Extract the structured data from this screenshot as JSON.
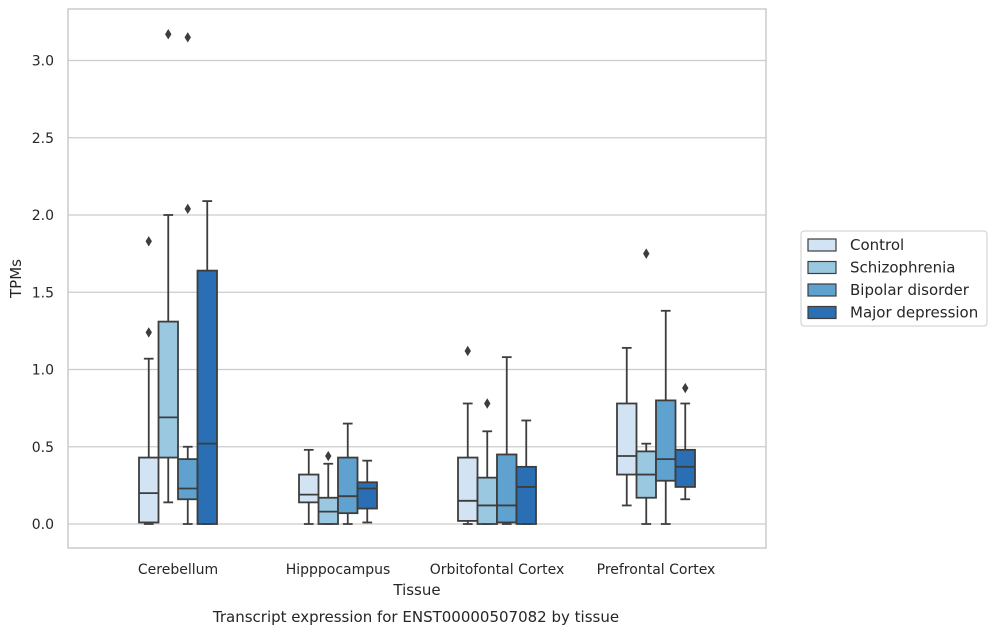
{
  "chart_data": {
    "type": "box",
    "title": "",
    "caption": "Transcript expression for ENST00000507082 by tissue",
    "xlabel": "Tissue",
    "ylabel": "TPMs",
    "ylim": [
      -0.15,
      3.35
    ],
    "yticks": [
      0.0,
      0.5,
      1.0,
      1.5,
      2.0,
      2.5,
      3.0
    ],
    "ytick_labels": [
      "0.0",
      "0.5",
      "1.0",
      "1.5",
      "2.0",
      "2.5",
      "3.0"
    ],
    "grid": "horizontal",
    "legend_position": "right",
    "categories": [
      "Cerebellum",
      "Hipppocampus",
      "Orbitofontal Cortex",
      "Prefrontal Cortex"
    ],
    "series": [
      {
        "name": "Control",
        "color": "#d2e3f3",
        "boxes": [
          {
            "whislo": 0.0,
            "q1": 0.01,
            "med": 0.2,
            "q3": 0.43,
            "whishi": 1.07,
            "fliers": [
              1.24,
              1.83
            ]
          },
          {
            "whislo": 0.0,
            "q1": 0.14,
            "med": 0.19,
            "q3": 0.32,
            "whishi": 0.48,
            "fliers": []
          },
          {
            "whislo": 0.0,
            "q1": 0.02,
            "med": 0.15,
            "q3": 0.43,
            "whishi": 0.78,
            "fliers": [
              1.12
            ]
          },
          {
            "whislo": 0.12,
            "q1": 0.32,
            "med": 0.44,
            "q3": 0.78,
            "whishi": 1.14,
            "fliers": []
          }
        ]
      },
      {
        "name": "Schizophrenia",
        "color": "#9ac8e0",
        "boxes": [
          {
            "whislo": 0.14,
            "q1": 0.43,
            "med": 0.69,
            "q3": 1.31,
            "whishi": 2.0,
            "fliers": [
              3.17
            ]
          },
          {
            "whislo": 0.0,
            "q1": 0.0,
            "med": 0.08,
            "q3": 0.17,
            "whishi": 0.39,
            "fliers": [
              0.44
            ]
          },
          {
            "whislo": 0.0,
            "q1": 0.0,
            "med": 0.12,
            "q3": 0.3,
            "whishi": 0.6,
            "fliers": [
              0.78
            ]
          },
          {
            "whislo": 0.0,
            "q1": 0.17,
            "med": 0.32,
            "q3": 0.47,
            "whishi": 0.52,
            "fliers": [
              1.75
            ]
          }
        ]
      },
      {
        "name": "Bipolar disorder",
        "color": "#5fa2cf",
        "boxes": [
          {
            "whislo": 0.0,
            "q1": 0.16,
            "med": 0.23,
            "q3": 0.42,
            "whishi": 0.5,
            "fliers": [
              2.04,
              3.15
            ]
          },
          {
            "whislo": 0.0,
            "q1": 0.07,
            "med": 0.18,
            "q3": 0.43,
            "whishi": 0.65,
            "fliers": []
          },
          {
            "whislo": 0.0,
            "q1": 0.01,
            "med": 0.12,
            "q3": 0.45,
            "whishi": 1.08,
            "fliers": []
          },
          {
            "whislo": 0.0,
            "q1": 0.28,
            "med": 0.42,
            "q3": 0.8,
            "whishi": 1.38,
            "fliers": []
          }
        ]
      },
      {
        "name": "Major depression",
        "color": "#2a6fb3",
        "boxes": [
          {
            "whislo": 0.0,
            "q1": 0.0,
            "med": 0.52,
            "q3": 1.64,
            "whishi": 2.09,
            "fliers": []
          },
          {
            "whislo": 0.01,
            "q1": 0.1,
            "med": 0.23,
            "q3": 0.27,
            "whishi": 0.41,
            "fliers": []
          },
          {
            "whislo": 0.0,
            "q1": 0.0,
            "med": 0.24,
            "q3": 0.37,
            "whishi": 0.67,
            "fliers": []
          },
          {
            "whislo": 0.16,
            "q1": 0.24,
            "med": 0.37,
            "q3": 0.48,
            "whishi": 0.78,
            "fliers": [
              0.88
            ]
          }
        ]
      }
    ]
  }
}
